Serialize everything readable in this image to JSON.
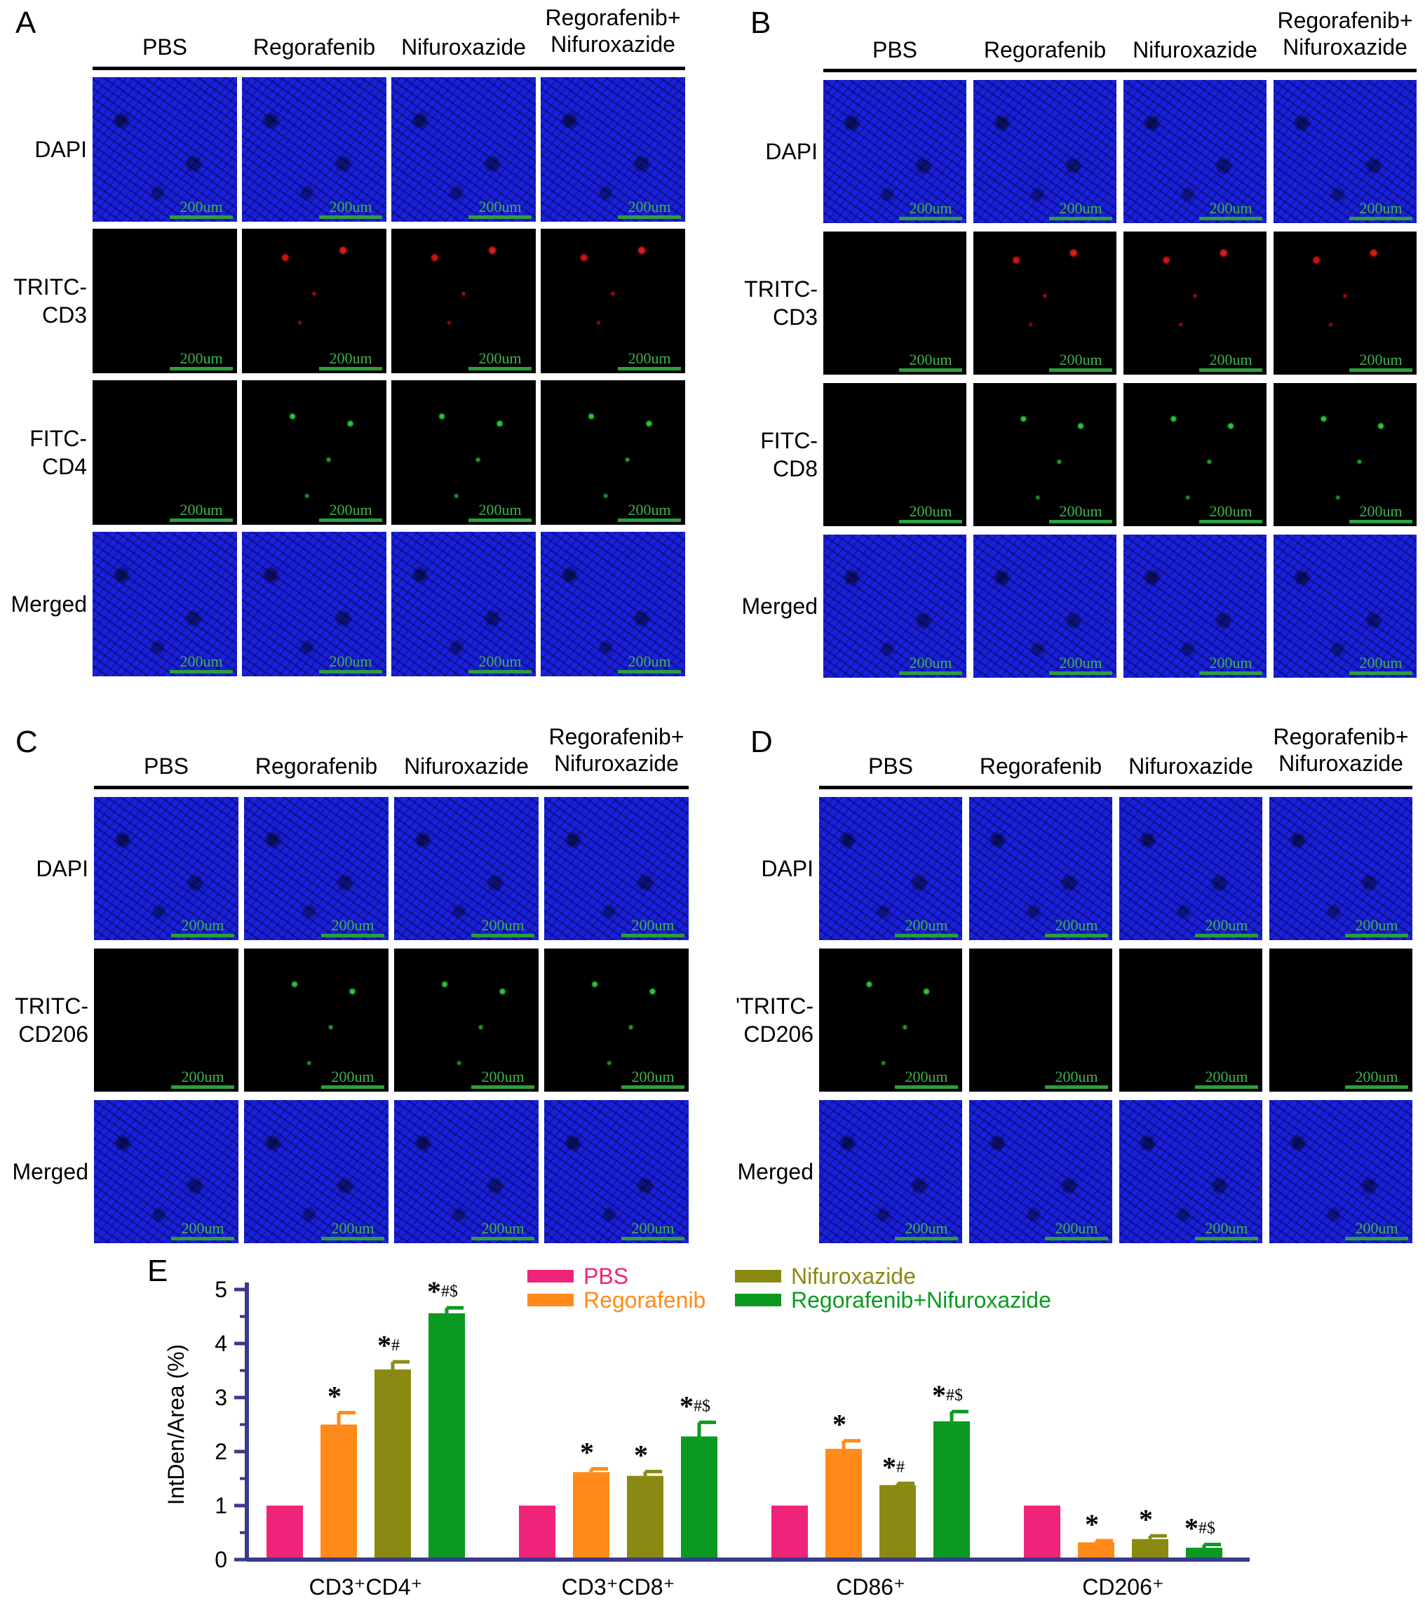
{
  "panels": [
    {
      "label": "A",
      "columns": [
        "PBS",
        "Regorafenib",
        "Nifuroxazide",
        "Regorafenib+\nNifuroxazide"
      ],
      "rows": [
        "DAPI",
        "TRITC-\nCD3",
        "FITC-\nCD4",
        "Merged"
      ]
    },
    {
      "label": "B",
      "columns": [
        "PBS",
        "Regorafenib",
        "Nifuroxazide",
        "Regorafenib+\nNifuroxazide"
      ],
      "rows": [
        "DAPI",
        "TRITC-\nCD3",
        "FITC-\nCD8",
        "Merged"
      ]
    },
    {
      "label": "C",
      "columns": [
        "PBS",
        "Regorafenib",
        "Nifuroxazide",
        "Regorafenib+\nNifuroxazide"
      ],
      "rows": [
        "DAPI",
        "TRITC-\nCD206",
        "Merged"
      ]
    },
    {
      "label": "D",
      "columns": [
        "PBS",
        "Regorafenib",
        "Nifuroxazide",
        "Regorafenib+\nNifuroxazide"
      ],
      "rows": [
        "DAPI",
        "'TRITC-\nCD206",
        "Merged"
      ]
    }
  ],
  "scale_bar_label": "200um",
  "chart_label": "E",
  "chart_data": {
    "type": "bar",
    "ylabel": "IntDen/Area (%)",
    "ylim": [
      0,
      5
    ],
    "yticks": [
      0,
      1,
      2,
      3,
      4,
      5
    ],
    "categories": [
      "CD3⁺CD4⁺",
      "CD3⁺CD8⁺",
      "CD86⁺",
      "CD206⁺"
    ],
    "series": [
      {
        "name": "PBS",
        "color": "#f0237a",
        "values": [
          1.0,
          1.0,
          1.0,
          1.0
        ],
        "errors": [
          0,
          0,
          0,
          0
        ],
        "annotations": [
          "",
          "",
          "",
          ""
        ]
      },
      {
        "name": "Regorafenib",
        "color": "#ff8a1a",
        "values": [
          2.5,
          1.62,
          2.05,
          0.32
        ],
        "errors": [
          0.22,
          0.06,
          0.15,
          0.03
        ],
        "annotations": [
          "*",
          "*",
          "*",
          "*"
        ]
      },
      {
        "name": "Nifuroxazide",
        "color": "#8a8a12",
        "values": [
          3.52,
          1.55,
          1.38,
          0.38
        ],
        "errors": [
          0.14,
          0.08,
          0.03,
          0.06
        ],
        "annotations": [
          "*#",
          "*",
          "*#",
          "*"
        ]
      },
      {
        "name": "Regorafenib+Nifuroxazide",
        "color": "#0a9a22",
        "values": [
          4.56,
          2.28,
          2.56,
          0.22
        ],
        "errors": [
          0.1,
          0.26,
          0.18,
          0.06
        ],
        "annotations": [
          "*#$",
          "*#$",
          "*#$",
          "*#$"
        ]
      }
    ],
    "legend_text_colors": [
      "#f0237a",
      "#0a9a22",
      "#8a8a12",
      "#0a9a22"
    ]
  }
}
